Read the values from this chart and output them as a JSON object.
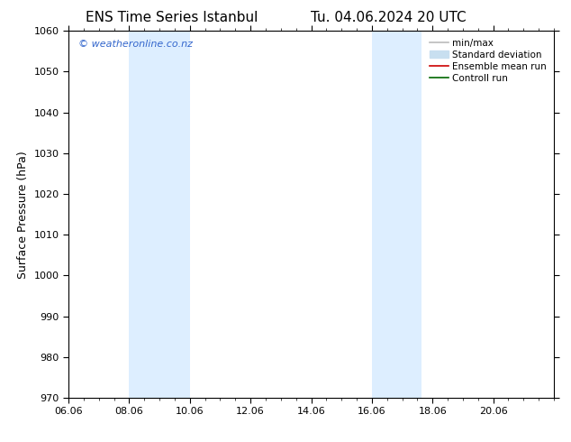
{
  "title_left": "ENS Time Series Istanbul",
  "title_right": "Tu. 04.06.2024 20 UTC",
  "ylabel": "Surface Pressure (hPa)",
  "ylim": [
    970,
    1060
  ],
  "yticks": [
    970,
    980,
    990,
    1000,
    1010,
    1020,
    1030,
    1040,
    1050,
    1060
  ],
  "xlim": [
    0.0,
    15.0
  ],
  "xtick_labels": [
    "06.06",
    "08.06",
    "10.06",
    "12.06",
    "14.06",
    "16.06",
    "18.06",
    "20.06"
  ],
  "xtick_positions": [
    0.0,
    1.875,
    3.75,
    5.625,
    7.5,
    9.375,
    11.25,
    13.125
  ],
  "shaded_bands": [
    {
      "x_start": 1.875,
      "x_end": 3.75
    },
    {
      "x_start": 9.375,
      "x_end": 10.9
    }
  ],
  "shaded_color": "#ddeeff",
  "watermark": "© weatheronline.co.nz",
  "watermark_color": "#3366cc",
  "legend_items": [
    {
      "label": "min/max",
      "color": "#bbbbbb",
      "linestyle": "-",
      "linewidth": 1.2
    },
    {
      "label": "Standard deviation",
      "color": "#c8dff0",
      "linestyle": "-",
      "linewidth": 8
    },
    {
      "label": "Ensemble mean run",
      "color": "#cc0000",
      "linestyle": "-",
      "linewidth": 1.2
    },
    {
      "label": "Controll run",
      "color": "#006600",
      "linestyle": "-",
      "linewidth": 1.2
    }
  ],
  "bg_color": "#ffffff",
  "spine_color": "#000000",
  "tick_label_fontsize": 8,
  "axis_label_fontsize": 9,
  "title_fontsize": 11,
  "watermark_fontsize": 8
}
